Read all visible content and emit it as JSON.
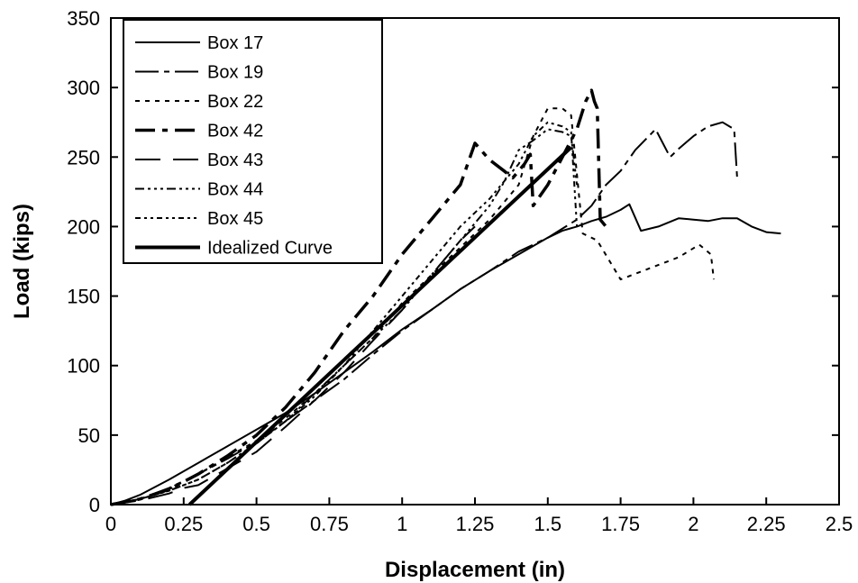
{
  "chart_data": {
    "type": "line",
    "title": "",
    "xlabel": "Displacement (in)",
    "ylabel": "Load (kips)",
    "xlim": [
      0,
      2.5
    ],
    "ylim": [
      0,
      350
    ],
    "xticks": [
      0,
      0.25,
      0.5,
      0.75,
      1,
      1.25,
      1.5,
      1.75,
      2,
      2.25,
      2.5
    ],
    "xtick_labels": [
      "0",
      "0.25",
      "0.5",
      "0.75",
      "1",
      "1.25",
      "1.5",
      "1.75",
      "2",
      "2.25",
      "2.5"
    ],
    "yticks": [
      0,
      50,
      100,
      150,
      200,
      250,
      300,
      350
    ],
    "ytick_labels": [
      "0",
      "50",
      "100",
      "150",
      "200",
      "250",
      "300",
      "350"
    ],
    "grid": false,
    "legend_position": "top-left",
    "series": [
      {
        "name": "Box 17",
        "dash": "",
        "width": 2,
        "x": [
          0.0,
          0.05,
          0.1,
          0.2,
          0.3,
          0.4,
          0.5,
          0.6,
          0.7,
          0.8,
          0.9,
          1.0,
          1.1,
          1.2,
          1.3,
          1.4,
          1.5,
          1.55,
          1.6,
          1.65,
          1.7,
          1.75,
          1.78,
          1.82,
          1.88,
          1.95,
          2.0,
          2.05,
          2.1,
          2.15,
          2.2,
          2.25,
          2.3
        ],
        "y": [
          0,
          3,
          7,
          18,
          30,
          42,
          54,
          66,
          80,
          95,
          110,
          126,
          140,
          155,
          168,
          180,
          192,
          197,
          200,
          204,
          207,
          212,
          216,
          197,
          200,
          206,
          205,
          204,
          206,
          206,
          200,
          196,
          195
        ]
      },
      {
        "name": "Box 19",
        "dash": "26,6,6,6",
        "width": 2,
        "x": [
          0.0,
          0.1,
          0.2,
          0.3,
          0.4,
          0.5,
          0.6,
          0.7,
          0.8,
          0.9,
          1.0,
          1.1,
          1.2,
          1.3,
          1.4,
          1.5,
          1.6,
          1.65,
          1.7,
          1.75,
          1.8,
          1.87,
          1.92,
          1.95,
          2.0,
          2.05,
          2.1,
          2.14,
          2.15
        ],
        "y": [
          0,
          4,
          12,
          22,
          33,
          45,
          60,
          75,
          90,
          108,
          125,
          140,
          155,
          168,
          182,
          192,
          205,
          215,
          230,
          240,
          255,
          270,
          250,
          256,
          265,
          272,
          275,
          270,
          235
        ]
      },
      {
        "name": "Box 22",
        "dash": "5,6",
        "width": 2,
        "x": [
          0.0,
          0.1,
          0.2,
          0.3,
          0.4,
          0.5,
          0.6,
          0.7,
          0.8,
          0.9,
          1.0,
          1.1,
          1.2,
          1.3,
          1.4,
          1.45,
          1.5,
          1.55,
          1.58,
          1.62,
          1.67,
          1.75,
          1.85,
          1.95,
          2.02,
          2.06,
          2.07
        ],
        "y": [
          0,
          4,
          11,
          22,
          34,
          46,
          62,
          80,
          100,
          120,
          145,
          165,
          185,
          205,
          230,
          265,
          285,
          285,
          280,
          195,
          190,
          162,
          170,
          178,
          187,
          180,
          162
        ]
      },
      {
        "name": "Box 42",
        "dash": "22,8,6,8",
        "width": 3.5,
        "x": [
          0.0,
          0.1,
          0.2,
          0.3,
          0.4,
          0.5,
          0.6,
          0.7,
          0.8,
          0.9,
          1.0,
          1.1,
          1.2,
          1.25,
          1.3,
          1.35,
          1.38,
          1.42,
          1.44,
          1.45,
          1.5,
          1.55,
          1.6,
          1.63,
          1.65,
          1.66,
          1.67,
          1.68,
          1.7
        ],
        "y": [
          0,
          4,
          11,
          22,
          35,
          50,
          70,
          95,
          125,
          150,
          180,
          205,
          230,
          260,
          248,
          240,
          235,
          245,
          252,
          215,
          230,
          250,
          270,
          290,
          298,
          290,
          285,
          205,
          200
        ]
      },
      {
        "name": "Box 43",
        "dash": "28,14",
        "width": 2,
        "x": [
          0.0,
          0.1,
          0.2,
          0.25,
          0.3,
          0.4,
          0.5,
          0.6,
          0.7,
          0.8,
          0.9,
          1.0,
          1.1,
          1.2,
          1.25
        ],
        "y": [
          0,
          3,
          8,
          12,
          14,
          26,
          38,
          56,
          75,
          95,
          118,
          140,
          165,
          190,
          200
        ]
      },
      {
        "name": "Box 44",
        "dash": "10,4,3,4,3,4,3,4",
        "width": 2,
        "x": [
          0.0,
          0.1,
          0.2,
          0.3,
          0.4,
          0.5,
          0.6,
          0.7,
          0.8,
          0.9,
          1.0,
          1.1,
          1.2,
          1.3,
          1.35,
          1.4,
          1.45,
          1.5,
          1.55,
          1.58,
          1.6
        ],
        "y": [
          0,
          4,
          10,
          18,
          30,
          44,
          60,
          80,
          100,
          120,
          140,
          165,
          190,
          215,
          232,
          255,
          262,
          270,
          268,
          265,
          230
        ]
      },
      {
        "name": "Box 45",
        "dash": "6,4,3,4,3,4",
        "width": 2,
        "x": [
          0.0,
          0.1,
          0.2,
          0.3,
          0.4,
          0.5,
          0.6,
          0.7,
          0.8,
          0.9,
          1.0,
          1.1,
          1.2,
          1.3,
          1.4,
          1.45,
          1.5,
          1.55,
          1.58,
          1.6
        ],
        "y": [
          0,
          4,
          10,
          18,
          30,
          44,
          60,
          78,
          100,
          125,
          150,
          175,
          200,
          220,
          245,
          265,
          275,
          272,
          268,
          200
        ]
      },
      {
        "name": "Idealized Curve",
        "dash": "",
        "width": 4,
        "x": [
          0.27,
          1.58
        ],
        "y": [
          0,
          257
        ]
      }
    ]
  }
}
